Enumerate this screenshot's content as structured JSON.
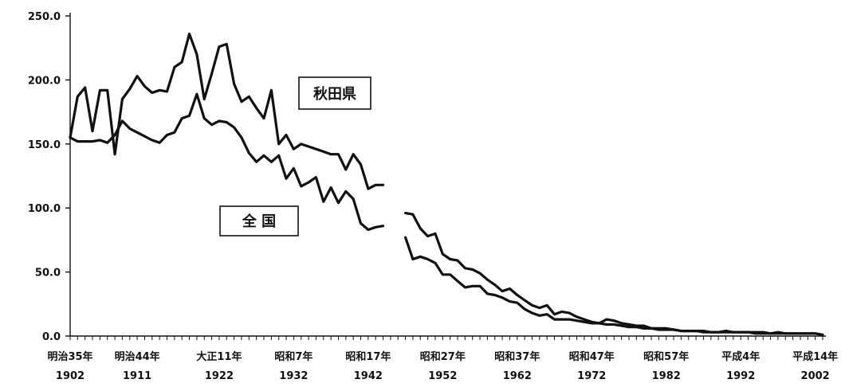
{
  "chart_data": {
    "type": "line",
    "ylim": [
      0,
      250
    ],
    "yticks": [
      "0.0",
      "50.0",
      "100.0",
      "150.0",
      "200.0",
      "250.0"
    ],
    "xticks": [
      {
        "x": 1902,
        "era": "明治35年",
        "year": "1902"
      },
      {
        "x": 1911,
        "era": "明治44年",
        "year": "1911"
      },
      {
        "x": 1922,
        "era": "大正11年",
        "year": "1922"
      },
      {
        "x": 1932,
        "era": "昭和7年",
        "year": "1932"
      },
      {
        "x": 1942,
        "era": "昭和17年",
        "year": "1942"
      },
      {
        "x": 1952,
        "era": "昭和27年",
        "year": "1952"
      },
      {
        "x": 1962,
        "era": "昭和37年",
        "year": "1962"
      },
      {
        "x": 1972,
        "era": "昭和47年",
        "year": "1972"
      },
      {
        "x": 1982,
        "era": "昭和57年",
        "year": "1982"
      },
      {
        "x": 1992,
        "era": "平成4年",
        "year": "1992"
      },
      {
        "x": 2002,
        "era": "平成14年",
        "year": "2002"
      }
    ],
    "xlim": [
      1902,
      2003
    ],
    "series": [
      {
        "name": "秋田県",
        "segments": [
          [
            [
              1902,
              155
            ],
            [
              1903,
              187
            ],
            [
              1904,
              194
            ],
            [
              1905,
              160
            ],
            [
              1906,
              192
            ],
            [
              1907,
              192
            ],
            [
              1908,
              142
            ],
            [
              1909,
              185
            ],
            [
              1910,
              193
            ],
            [
              1911,
              203
            ],
            [
              1912,
              195
            ],
            [
              1913,
              190
            ],
            [
              1914,
              192
            ],
            [
              1915,
              191
            ],
            [
              1916,
              210
            ],
            [
              1917,
              214
            ],
            [
              1918,
              236
            ],
            [
              1919,
              220
            ],
            [
              1920,
              185
            ],
            [
              1921,
              205
            ],
            [
              1922,
              226
            ],
            [
              1923,
              228
            ],
            [
              1924,
              197
            ],
            [
              1925,
              183
            ],
            [
              1926,
              187
            ],
            [
              1927,
              178
            ],
            [
              1928,
              170
            ],
            [
              1929,
              192
            ],
            [
              1930,
              150
            ],
            [
              1931,
              157
            ],
            [
              1932,
              146
            ],
            [
              1933,
              150
            ],
            [
              1934,
              148
            ],
            [
              1935,
              146
            ],
            [
              1936,
              144
            ],
            [
              1937,
              142
            ],
            [
              1938,
              142
            ],
            [
              1939,
              130
            ],
            [
              1940,
              142
            ],
            [
              1941,
              134
            ],
            [
              1942,
              115
            ],
            [
              1943,
              118
            ],
            [
              1944,
              118
            ]
          ],
          [
            [
              1947,
              96
            ],
            [
              1948,
              95
            ],
            [
              1949,
              84
            ],
            [
              1950,
              78
            ],
            [
              1951,
              80
            ],
            [
              1952,
              64
            ],
            [
              1953,
              60
            ],
            [
              1954,
              59
            ],
            [
              1955,
              53
            ],
            [
              1956,
              52
            ],
            [
              1957,
              49
            ],
            [
              1958,
              44
            ],
            [
              1959,
              40
            ],
            [
              1960,
              35
            ],
            [
              1961,
              37
            ],
            [
              1962,
              32
            ],
            [
              1963,
              28
            ],
            [
              1964,
              24
            ],
            [
              1965,
              22
            ],
            [
              1966,
              24
            ],
            [
              1967,
              17
            ],
            [
              1968,
              19
            ],
            [
              1969,
              18
            ],
            [
              1970,
              15
            ],
            [
              1971,
              13
            ],
            [
              1972,
              11
            ],
            [
              1973,
              10
            ],
            [
              1974,
              13
            ],
            [
              1975,
              12
            ],
            [
              1976,
              10
            ],
            [
              1977,
              9
            ],
            [
              1978,
              8
            ],
            [
              1979,
              8
            ],
            [
              1980,
              6
            ],
            [
              1981,
              6
            ],
            [
              1982,
              6
            ],
            [
              1983,
              5
            ],
            [
              1984,
              4
            ],
            [
              1985,
              4
            ],
            [
              1986,
              4
            ],
            [
              1987,
              4
            ],
            [
              1988,
              3
            ],
            [
              1989,
              3
            ],
            [
              1990,
              4
            ],
            [
              1991,
              3
            ],
            [
              1992,
              3
            ],
            [
              1993,
              3
            ],
            [
              1994,
              3
            ],
            [
              1995,
              3
            ],
            [
              1996,
              2
            ],
            [
              1997,
              3
            ],
            [
              1998,
              2
            ],
            [
              1999,
              2
            ],
            [
              2000,
              2
            ],
            [
              2001,
              2
            ],
            [
              2002,
              2
            ],
            [
              2003,
              1
            ]
          ]
        ]
      },
      {
        "name": "全国",
        "segments": [
          [
            [
              1902,
              155
            ],
            [
              1903,
              152
            ],
            [
              1904,
              152
            ],
            [
              1905,
              152
            ],
            [
              1906,
              153
            ],
            [
              1907,
              151
            ],
            [
              1908,
              157
            ],
            [
              1909,
              168
            ],
            [
              1910,
              162
            ],
            [
              1911,
              159
            ],
            [
              1912,
              156
            ],
            [
              1913,
              153
            ],
            [
              1914,
              151
            ],
            [
              1915,
              157
            ],
            [
              1916,
              159
            ],
            [
              1917,
              170
            ],
            [
              1918,
              172
            ],
            [
              1919,
              189
            ],
            [
              1920,
              170
            ],
            [
              1921,
              165
            ],
            [
              1922,
              168
            ],
            [
              1923,
              167
            ],
            [
              1924,
              163
            ],
            [
              1925,
              155
            ],
            [
              1926,
              143
            ],
            [
              1927,
              136
            ],
            [
              1928,
              141
            ],
            [
              1929,
              136
            ],
            [
              1930,
              141
            ],
            [
              1931,
              123
            ],
            [
              1932,
              131
            ],
            [
              1933,
              117
            ],
            [
              1934,
              120
            ],
            [
              1935,
              124
            ],
            [
              1936,
              105
            ],
            [
              1937,
              116
            ],
            [
              1938,
              104
            ],
            [
              1939,
              113
            ],
            [
              1940,
              107
            ],
            [
              1941,
              88
            ],
            [
              1942,
              83
            ],
            [
              1943,
              85
            ],
            [
              1944,
              86
            ]
          ],
          [
            [
              1947,
              77
            ],
            [
              1948,
              60
            ],
            [
              1949,
              62
            ],
            [
              1950,
              60
            ],
            [
              1951,
              57
            ],
            [
              1952,
              48
            ],
            [
              1953,
              48
            ],
            [
              1954,
              43
            ],
            [
              1955,
              38
            ],
            [
              1956,
              39
            ],
            [
              1957,
              39
            ],
            [
              1958,
              33
            ],
            [
              1959,
              32
            ],
            [
              1960,
              30
            ],
            [
              1961,
              27
            ],
            [
              1962,
              26
            ],
            [
              1963,
              21
            ],
            [
              1964,
              18
            ],
            [
              1965,
              16
            ],
            [
              1966,
              17
            ],
            [
              1967,
              13
            ],
            [
              1968,
              13
            ],
            [
              1969,
              13
            ],
            [
              1970,
              12
            ],
            [
              1971,
              11
            ],
            [
              1972,
              10
            ],
            [
              1973,
              10
            ],
            [
              1974,
              9
            ],
            [
              1975,
              9
            ],
            [
              1976,
              8
            ],
            [
              1977,
              7
            ],
            [
              1978,
              7
            ],
            [
              1979,
              6
            ],
            [
              1980,
              6
            ],
            [
              1981,
              5
            ],
            [
              1982,
              5
            ],
            [
              1983,
              5
            ],
            [
              1984,
              4
            ],
            [
              1985,
              4
            ],
            [
              1986,
              4
            ],
            [
              1987,
              3
            ],
            [
              1988,
              3
            ],
            [
              1989,
              3
            ],
            [
              1990,
              3
            ],
            [
              1991,
              3
            ],
            [
              1992,
              3
            ],
            [
              1993,
              3
            ],
            [
              1994,
              2
            ],
            [
              1995,
              2
            ],
            [
              1996,
              2
            ],
            [
              1997,
              2
            ],
            [
              1998,
              2
            ],
            [
              1999,
              2
            ],
            [
              2000,
              2
            ],
            [
              2001,
              2
            ],
            [
              2002,
              2
            ],
            [
              2003,
              1
            ]
          ]
        ]
      }
    ],
    "annotations": [
      {
        "text": "秋田県",
        "series": "秋田県"
      },
      {
        "text": "全 国",
        "series": "全国"
      }
    ]
  }
}
